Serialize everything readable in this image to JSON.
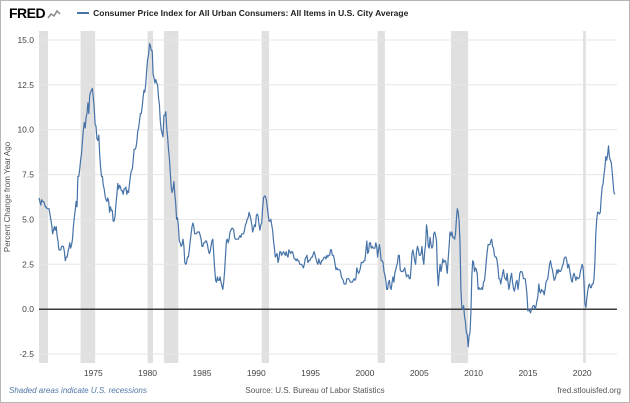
{
  "header": {
    "logo_text": "FRED",
    "legend_label": "Consumer Price Index for All Urban Consumers: All Items in U.S. City Average"
  },
  "footer": {
    "recession_note": "Shaded areas indicate U.S. recessions",
    "source": "Source: U.S. Bureau of Labor Statistics",
    "site": "fred.stlouisfed.org"
  },
  "chart_data": {
    "type": "line",
    "title": "Consumer Price Index for All Urban Consumers: All Items in U.S. City Average",
    "xlabel": "",
    "ylabel": "Percent Change from Year Ago",
    "xlim": [
      1970,
      2023.2
    ],
    "ylim": [
      -3.0,
      15.5
    ],
    "x_ticks": [
      1975,
      1980,
      1985,
      1990,
      1995,
      2000,
      2005,
      2010,
      2015,
      2020
    ],
    "y_ticks": [
      -2.5,
      0.0,
      2.5,
      5.0,
      7.5,
      10.0,
      12.5,
      15.0
    ],
    "grid": "horizontal",
    "legend_position": "top",
    "line_color": "#4572a7",
    "zero_line_color": "#000000",
    "recession_color": "#e0e0e0",
    "grid_color": "#e6e6e6",
    "recessions": [
      [
        1969.92,
        1970.83
      ],
      [
        1973.83,
        1975.17
      ],
      [
        1980.0,
        1980.5
      ],
      [
        1981.5,
        1982.83
      ],
      [
        1990.5,
        1991.17
      ],
      [
        2001.17,
        2001.83
      ],
      [
        2007.92,
        2009.5
      ],
      [
        2020.08,
        2020.33
      ]
    ],
    "frequency": "monthly",
    "x_start_year": 1970,
    "values": [
      6.2,
      6.0,
      5.8,
      6.1,
      6.0,
      6.0,
      5.9,
      5.7,
      5.7,
      5.6,
      5.6,
      5.6,
      5.3,
      5.0,
      4.7,
      4.2,
      4.4,
      4.6,
      4.4,
      4.6,
      4.1,
      3.8,
      3.3,
      3.3,
      3.3,
      3.5,
      3.5,
      3.5,
      3.2,
      2.7,
      2.9,
      2.9,
      3.2,
      3.4,
      3.7,
      3.4,
      3.6,
      3.9,
      4.6,
      5.1,
      5.5,
      6.0,
      5.7,
      7.4,
      7.4,
      7.8,
      8.3,
      8.7,
      9.4,
      10.0,
      10.4,
      10.1,
      10.7,
      10.9,
      11.5,
      10.9,
      11.9,
      12.1,
      12.2,
      12.3,
      11.8,
      11.2,
      10.3,
      10.2,
      9.5,
      9.4,
      9.7,
      8.6,
      7.9,
      7.4,
      7.4,
      6.9,
      6.7,
      6.3,
      6.1,
      6.0,
      6.2,
      6.0,
      5.4,
      5.7,
      5.5,
      5.5,
      4.9,
      4.9,
      5.2,
      5.9,
      6.4,
      7.0,
      6.7,
      6.9,
      6.8,
      6.6,
      6.6,
      6.4,
      6.7,
      6.7,
      6.8,
      6.4,
      6.6,
      6.5,
      7.0,
      7.4,
      7.7,
      7.8,
      8.3,
      8.9,
      8.9,
      9.0,
      9.3,
      9.9,
      10.1,
      10.5,
      10.9,
      10.9,
      11.3,
      11.8,
      12.2,
      12.1,
      12.6,
      13.3,
      13.9,
      14.2,
      14.8,
      14.7,
      14.4,
      14.4,
      13.1,
      12.9,
      12.6,
      12.8,
      12.6,
      12.5,
      11.8,
      11.4,
      10.5,
      10.0,
      9.8,
      9.6,
      10.8,
      10.8,
      11.0,
      10.1,
      9.6,
      8.9,
      8.4,
      7.6,
      6.8,
      6.5,
      6.7,
      7.1,
      6.4,
      5.9,
      5.0,
      5.1,
      4.6,
      3.8,
      3.7,
      3.5,
      3.6,
      3.9,
      3.5,
      2.6,
      2.5,
      2.6,
      2.9,
      2.9,
      3.3,
      3.8,
      4.2,
      4.6,
      4.8,
      4.6,
      4.2,
      4.2,
      4.2,
      4.3,
      4.3,
      4.3,
      4.1,
      3.9,
      3.5,
      3.5,
      3.7,
      3.7,
      3.8,
      3.8,
      3.6,
      3.3,
      3.1,
      3.2,
      3.5,
      3.8,
      3.9,
      3.1,
      2.3,
      1.6,
      1.5,
      1.8,
      1.6,
      1.6,
      1.8,
      1.5,
      1.3,
      1.1,
      1.5,
      2.1,
      3.0,
      3.8,
      3.9,
      3.7,
      3.9,
      4.3,
      4.4,
      4.5,
      4.5,
      4.4,
      4.0,
      3.9,
      3.9,
      3.9,
      3.9,
      4.0,
      4.1,
      4.0,
      4.2,
      4.2,
      4.2,
      4.4,
      4.7,
      4.8,
      5.0,
      5.1,
      5.4,
      5.2,
      5.0,
      4.7,
      4.3,
      4.5,
      4.7,
      4.6,
      5.2,
      5.3,
      5.2,
      4.7,
      4.4,
      4.7,
      4.8,
      5.6,
      6.2,
      6.3,
      6.3,
      6.1,
      5.7,
      5.3,
      4.9,
      4.9,
      5.0,
      4.7,
      4.4,
      3.8,
      3.4,
      2.9,
      3.0,
      3.1,
      2.6,
      2.8,
      3.2,
      3.2,
      3.0,
      3.1,
      3.2,
      3.1,
      3.0,
      3.2,
      3.0,
      2.9,
      3.3,
      3.2,
      3.1,
      3.2,
      3.2,
      3.0,
      2.8,
      2.8,
      2.7,
      2.8,
      2.7,
      2.7,
      2.5,
      2.5,
      2.5,
      2.4,
      2.3,
      2.5,
      2.8,
      2.9,
      3.0,
      2.6,
      2.7,
      2.7,
      2.8,
      2.9,
      2.9,
      3.1,
      3.2,
      3.0,
      2.8,
      2.6,
      2.5,
      2.8,
      2.6,
      2.5,
      2.7,
      2.7,
      2.8,
      2.9,
      2.9,
      2.8,
      3.0,
      2.9,
      3.0,
      3.0,
      3.3,
      3.3,
      3.0,
      3.0,
      2.8,
      2.5,
      2.2,
      2.3,
      2.2,
      2.2,
      2.2,
      2.1,
      1.8,
      1.7,
      1.6,
      1.4,
      1.4,
      1.4,
      1.7,
      1.7,
      1.7,
      1.6,
      1.5,
      1.5,
      1.5,
      1.6,
      1.7,
      1.6,
      1.7,
      2.3,
      2.1,
      2.0,
      2.1,
      2.3,
      2.6,
      2.6,
      2.6,
      2.7,
      2.7,
      3.2,
      3.8,
      3.1,
      3.2,
      3.7,
      3.7,
      3.4,
      3.5,
      3.4,
      3.4,
      3.4,
      3.7,
      3.5,
      2.9,
      3.3,
      3.6,
      3.2,
      2.7,
      2.7,
      2.6,
      2.1,
      1.9,
      1.6,
      1.1,
      1.1,
      1.5,
      1.6,
      1.2,
      1.1,
      1.5,
      1.8,
      1.5,
      2.0,
      2.2,
      2.4,
      2.6,
      3.0,
      3.0,
      2.2,
      2.1,
      2.1,
      2.1,
      2.2,
      2.3,
      2.0,
      1.8,
      1.9,
      1.9,
      1.7,
      1.7,
      2.3,
      3.1,
      3.3,
      3.0,
      2.7,
      2.5,
      3.2,
      3.5,
      3.3,
      3.0,
      3.0,
      3.1,
      3.5,
      2.8,
      2.5,
      3.2,
      3.6,
      4.7,
      4.3,
      3.5,
      3.4,
      4.0,
      3.6,
      3.4,
      3.5,
      4.2,
      4.3,
      4.1,
      3.8,
      2.1,
      1.3,
      2.0,
      2.5,
      2.1,
      2.4,
      2.8,
      2.6,
      2.7,
      2.7,
      2.4,
      2.0,
      2.8,
      3.5,
      4.3,
      4.1,
      4.3,
      4.0,
      4.0,
      3.9,
      4.2,
      5.0,
      5.6,
      5.4,
      4.9,
      3.7,
      1.1,
      0.1,
      0.0,
      0.2,
      -0.4,
      -0.7,
      -1.3,
      -1.4,
      -2.1,
      -1.5,
      -1.3,
      -0.2,
      1.8,
      2.7,
      2.6,
      2.1,
      2.3,
      2.2,
      2.0,
      1.1,
      1.2,
      1.1,
      1.1,
      1.2,
      1.1,
      1.5,
      1.6,
      2.1,
      2.7,
      3.2,
      3.6,
      3.6,
      3.6,
      3.8,
      3.9,
      3.5,
      3.4,
      3.0,
      2.9,
      2.9,
      2.7,
      2.3,
      1.7,
      1.7,
      1.4,
      1.7,
      2.0,
      2.2,
      1.8,
      1.7,
      1.6,
      2.0,
      1.5,
      1.1,
      1.4,
      1.8,
      2.0,
      1.5,
      1.2,
      1.0,
      1.2,
      1.5,
      1.6,
      1.1,
      1.5,
      2.0,
      2.1,
      2.1,
      2.0,
      1.7,
      1.7,
      1.7,
      1.3,
      0.8,
      -0.1,
      0.0,
      -0.1,
      -0.2,
      0.0,
      0.1,
      0.2,
      0.2,
      0.0,
      0.2,
      0.5,
      0.7,
      1.4,
      1.0,
      0.9,
      1.1,
      1.0,
      1.0,
      0.8,
      1.1,
      1.5,
      1.6,
      1.7,
      2.1,
      2.5,
      2.7,
      2.4,
      2.2,
      1.9,
      1.6,
      1.7,
      1.9,
      2.2,
      2.0,
      2.2,
      2.1,
      2.1,
      2.2,
      2.4,
      2.5,
      2.8,
      2.9,
      2.9,
      2.7,
      2.3,
      2.5,
      2.2,
      1.9,
      1.6,
      1.5,
      1.9,
      2.0,
      1.8,
      1.6,
      1.8,
      1.7,
      1.7,
      1.8,
      2.1,
      2.3,
      2.5,
      2.3,
      1.5,
      0.3,
      0.1,
      0.6,
      1.0,
      1.3,
      1.4,
      1.2,
      1.2,
      1.4,
      1.4,
      1.7,
      2.6,
      4.2,
      5.0,
      5.4,
      5.4,
      5.3,
      5.4,
      6.2,
      6.8,
      7.0,
      7.5,
      7.9,
      8.5,
      8.3,
      8.6,
      9.1,
      8.5,
      8.3,
      8.2,
      7.7,
      7.1,
      6.5,
      6.4
    ]
  }
}
